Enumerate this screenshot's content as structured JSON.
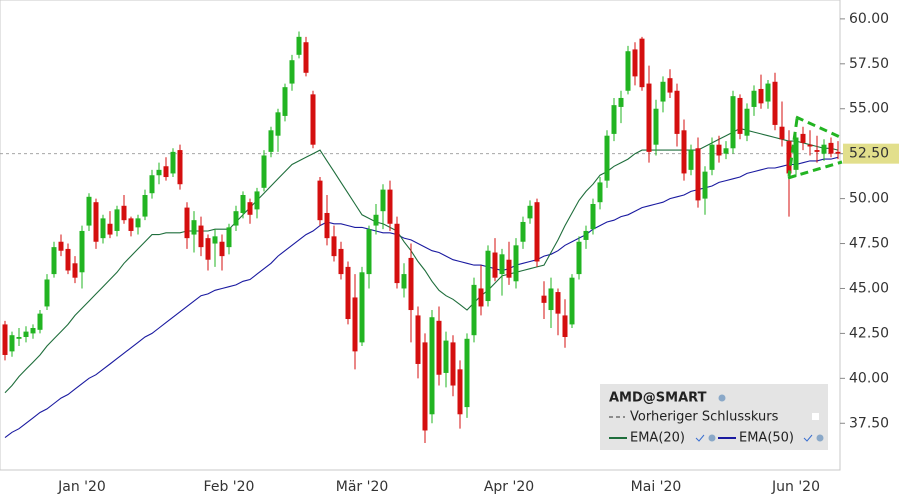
{
  "chart_data": {
    "type": "candlestick",
    "categories": [
      null,
      null,
      null,
      null,
      null,
      null,
      null,
      null,
      null,
      null,
      null,
      "Jan '20",
      null,
      null,
      null,
      null,
      null,
      null,
      null,
      null,
      null,
      null,
      null,
      null,
      null,
      null,
      null,
      null,
      null,
      null,
      null,
      null,
      "Feb '20",
      null,
      null,
      null,
      null,
      null,
      null,
      null,
      null,
      null,
      null,
      null,
      null,
      null,
      null,
      null,
      null,
      null,
      null,
      "Mär '20",
      null,
      null,
      null,
      null,
      null,
      null,
      null,
      null,
      null,
      null,
      null,
      null,
      null,
      null,
      null,
      null,
      null,
      null,
      null,
      null,
      "Apr '20",
      null,
      null,
      null,
      null,
      null,
      null,
      null,
      null,
      null,
      null,
      null,
      null,
      null,
      null,
      null,
      null,
      null,
      null,
      null,
      null,
      "Mai '20",
      null,
      null,
      null,
      null,
      null,
      null,
      null,
      null,
      null,
      null,
      null,
      null,
      null,
      null,
      null,
      null,
      null,
      null,
      null,
      "Jun '20",
      null,
      null,
      null,
      null,
      null,
      null
    ],
    "series": [
      {
        "name": "AMD@SMART",
        "up_color": "#22b422",
        "down_color": "#d40f0f",
        "open": [
          43.0,
          41.5,
          42.2,
          42.3,
          42.5,
          42.7,
          44.0,
          45.8,
          47.6,
          47.2,
          46.4,
          45.9,
          48.5,
          49.8,
          47.8,
          48.6,
          48.2,
          49.6,
          48.9,
          48.4,
          49.0,
          50.3,
          51.3,
          51.8,
          51.4,
          52.7,
          49.5,
          48.0,
          48.5,
          47.8,
          47.5,
          47.6,
          47.3,
          48.5,
          49.2,
          49.8,
          49.4,
          50.6,
          52.6,
          53.5,
          54.6,
          56.4,
          58.0,
          58.7,
          55.8,
          51.0,
          49.2,
          47.9,
          47.2,
          46.2,
          44.5,
          42.0,
          45.8,
          48.5,
          49.3,
          50.5,
          48.6,
          45.0,
          46.7,
          43.5,
          42.0,
          38.0,
          43.2,
          40.3,
          42.0,
          40.5,
          38.4,
          42.4,
          45.0,
          44.3,
          47.0,
          45.8,
          46.6,
          45.4,
          47.6,
          48.9,
          49.8,
          44.6,
          43.8,
          44.8,
          43.5,
          43.0,
          45.8,
          47.7,
          48.3,
          49.8,
          51.0,
          53.6,
          55.1,
          56.0,
          58.3,
          58.9,
          56.4,
          53.0,
          55.4,
          56.7,
          56.0,
          53.8,
          51.6,
          52.8,
          50.0,
          51.6,
          53.0,
          52.5,
          52.8,
          55.6,
          53.5,
          55.1,
          56.1,
          55.4,
          56.5,
          54.0,
          53.2,
          51.6,
          53.6,
          53.0,
          52.7,
          52.5,
          53.1,
          52.6
        ],
        "high": [
          43.2,
          42.6,
          42.8,
          42.9,
          43.0,
          43.8,
          45.8,
          47.6,
          48.0,
          47.5,
          46.8,
          48.5,
          50.3,
          50.0,
          49.1,
          49.3,
          49.6,
          50.2,
          49.0,
          49.1,
          50.5,
          51.6,
          52.0,
          52.3,
          52.8,
          53.0,
          49.8,
          49.3,
          49.0,
          48.0,
          48.3,
          48.0,
          48.6,
          49.6,
          50.4,
          50.0,
          50.6,
          52.7,
          54.0,
          55.0,
          56.4,
          58.0,
          59.3,
          59.0,
          56.0,
          51.2,
          50.2,
          48.5,
          47.6,
          46.5,
          45.8,
          46.2,
          48.5,
          49.7,
          50.8,
          51.0,
          49.0,
          46.4,
          47.5,
          44.0,
          42.5,
          43.8,
          44.0,
          42.6,
          42.4,
          41.0,
          42.5,
          45.6,
          46.3,
          47.4,
          47.8,
          47.2,
          47.6,
          47.8,
          49.0,
          49.9,
          50.0,
          45.4,
          45.6,
          45.0,
          44.4,
          45.8,
          47.9,
          48.5,
          50.0,
          51.2,
          53.8,
          55.6,
          56.0,
          58.5,
          58.7,
          59.0,
          57.4,
          55.5,
          56.8,
          57.2,
          56.4,
          54.4,
          53.0,
          53.4,
          51.8,
          53.4,
          53.5,
          53.2,
          56.0,
          55.8,
          55.3,
          56.3,
          56.9,
          56.6,
          57.0,
          55.4,
          53.8,
          53.6,
          54.0,
          53.8,
          53.5,
          53.3,
          53.4,
          53.2
        ],
        "low": [
          41.0,
          41.2,
          41.8,
          42.0,
          42.2,
          42.5,
          43.8,
          45.6,
          46.8,
          45.8,
          45.3,
          45.0,
          48.2,
          47.2,
          47.5,
          47.8,
          47.9,
          48.6,
          47.9,
          48.0,
          48.8,
          50.0,
          50.8,
          51.0,
          51.2,
          50.5,
          47.2,
          47.0,
          46.8,
          46.0,
          46.2,
          46.0,
          46.9,
          48.2,
          48.9,
          48.6,
          48.9,
          50.4,
          52.3,
          52.6,
          54.3,
          56.0,
          57.8,
          56.8,
          52.8,
          48.5,
          47.4,
          46.5,
          45.5,
          43.0,
          40.5,
          41.8,
          45.0,
          48.0,
          48.3,
          48.2,
          45.0,
          44.5,
          42.0,
          40.0,
          36.4,
          37.5,
          39.6,
          39.5,
          39.0,
          37.2,
          37.8,
          42.0,
          43.5,
          44.0,
          45.4,
          44.6,
          45.2,
          45.0,
          47.2,
          48.6,
          46.2,
          43.3,
          42.8,
          42.4,
          41.7,
          42.8,
          45.5,
          47.2,
          48.0,
          49.4,
          50.6,
          53.2,
          54.2,
          55.8,
          56.3,
          56.0,
          52.0,
          52.4,
          54.8,
          55.6,
          52.9,
          51.0,
          51.3,
          49.5,
          49.1,
          51.3,
          52.0,
          52.2,
          52.5,
          53.3,
          53.2,
          54.6,
          55.0,
          55.0,
          53.8,
          52.9,
          49.0,
          51.2,
          52.7,
          52.4,
          52.0,
          52.1,
          52.3,
          52.2
        ],
        "close": [
          41.3,
          42.4,
          42.3,
          42.6,
          42.8,
          43.6,
          45.5,
          47.3,
          47.1,
          46.0,
          45.6,
          48.2,
          50.1,
          47.6,
          48.9,
          48.0,
          49.4,
          48.8,
          48.2,
          48.9,
          50.2,
          51.3,
          51.6,
          51.2,
          52.6,
          50.8,
          47.8,
          48.8,
          47.3,
          46.6,
          47.9,
          46.8,
          48.4,
          49.3,
          50.2,
          49.1,
          50.4,
          52.4,
          53.8,
          54.8,
          56.2,
          57.7,
          59.0,
          57.0,
          53.0,
          48.8,
          47.8,
          46.8,
          45.8,
          43.3,
          41.5,
          45.9,
          48.3,
          49.1,
          50.5,
          48.6,
          45.3,
          45.8,
          43.8,
          40.8,
          37.1,
          43.4,
          40.2,
          42.1,
          39.6,
          38.0,
          42.2,
          45.2,
          44.0,
          47.1,
          45.6,
          46.9,
          45.6,
          47.4,
          48.7,
          49.6,
          46.5,
          44.2,
          45.0,
          43.6,
          42.3,
          45.6,
          47.6,
          48.2,
          49.7,
          50.9,
          53.5,
          55.2,
          55.6,
          58.2,
          56.8,
          56.2,
          52.6,
          55.0,
          56.5,
          55.9,
          53.6,
          51.4,
          52.7,
          49.9,
          51.5,
          53.0,
          52.4,
          52.8,
          55.7,
          53.6,
          55.0,
          56.0,
          55.3,
          56.4,
          54.1,
          53.3,
          51.4,
          53.4,
          53.1,
          52.9,
          52.6,
          53.0,
          52.5,
          52.5
        ]
      },
      {
        "name": "EMA(20)",
        "color": "#1f6e3c",
        "values": [
          39.2,
          39.6,
          40.1,
          40.5,
          40.9,
          41.3,
          41.8,
          42.2,
          42.6,
          43.0,
          43.5,
          43.9,
          44.3,
          44.7,
          45.1,
          45.5,
          45.9,
          46.4,
          46.8,
          47.2,
          47.6,
          48.0,
          48.0,
          48.1,
          48.1,
          48.1,
          48.2,
          48.2,
          48.2,
          48.2,
          48.3,
          48.3,
          48.3,
          48.7,
          49.1,
          49.5,
          49.9,
          50.3,
          50.7,
          51.1,
          51.5,
          51.9,
          52.1,
          52.3,
          52.5,
          52.7,
          52.1,
          51.5,
          50.9,
          50.3,
          49.7,
          49.1,
          48.9,
          48.7,
          48.6,
          48.4,
          48.2,
          47.6,
          47.1,
          46.5,
          46.0,
          45.4,
          44.9,
          44.6,
          44.4,
          44.1,
          43.8,
          44.2,
          44.6,
          44.9,
          45.3,
          45.7,
          45.8,
          45.9,
          46.0,
          46.1,
          46.2,
          46.3,
          47.0,
          47.7,
          48.5,
          49.2,
          49.9,
          50.4,
          50.8,
          51.3,
          51.5,
          51.8,
          52.0,
          52.2,
          52.5,
          52.7,
          52.7,
          52.7,
          52.7,
          52.7,
          52.7,
          52.7,
          52.7,
          52.7,
          52.9,
          53.1,
          53.3,
          53.5,
          53.7,
          53.9,
          53.8,
          53.7,
          53.6,
          53.5,
          53.4,
          53.3,
          53.2,
          53.2,
          53.1,
          53.0,
          52.9,
          52.8,
          52.8,
          52.7
        ]
      },
      {
        "name": "EMA(50)",
        "color": "#1a1aa0",
        "values": [
          36.7,
          37.0,
          37.2,
          37.5,
          37.8,
          38.1,
          38.3,
          38.6,
          38.9,
          39.1,
          39.4,
          39.7,
          40.0,
          40.2,
          40.5,
          40.8,
          41.1,
          41.4,
          41.7,
          42.0,
          42.3,
          42.5,
          42.8,
          43.1,
          43.4,
          43.7,
          44.0,
          44.3,
          44.6,
          44.7,
          44.9,
          45.0,
          45.1,
          45.2,
          45.4,
          45.5,
          45.8,
          46.1,
          46.4,
          46.8,
          47.1,
          47.4,
          47.7,
          48.0,
          48.2,
          48.5,
          48.7,
          48.6,
          48.6,
          48.5,
          48.4,
          48.4,
          48.3,
          48.2,
          48.1,
          48.1,
          48.0,
          47.8,
          47.7,
          47.5,
          47.3,
          47.1,
          47.0,
          46.8,
          46.6,
          46.5,
          46.4,
          46.3,
          46.3,
          46.2,
          46.1,
          46.0,
          46.1,
          46.3,
          46.4,
          46.5,
          46.6,
          46.8,
          46.9,
          47.1,
          47.4,
          47.6,
          47.8,
          48.0,
          48.3,
          48.5,
          48.7,
          48.8,
          49.0,
          49.1,
          49.3,
          49.5,
          49.6,
          49.7,
          49.8,
          50.0,
          50.1,
          50.2,
          50.4,
          50.5,
          50.6,
          50.7,
          50.9,
          51.0,
          51.1,
          51.2,
          51.4,
          51.5,
          51.6,
          51.7,
          51.7,
          51.8,
          51.9,
          51.9,
          52.0,
          52.1,
          52.1,
          52.2,
          52.2,
          52.3
        ]
      }
    ],
    "reference_line": {
      "name": "Vorheriger Schlusskurs",
      "value": 52.5,
      "label": "52.50",
      "color": "#e2df8c"
    },
    "ylim": [
      34.9,
      61.05
    ],
    "yticks": [
      {
        "value": 37.5,
        "label": "37.50"
      },
      {
        "value": 40,
        "label": "40.00"
      },
      {
        "value": 42.5,
        "label": "42.50"
      },
      {
        "value": 45,
        "label": "45.00"
      },
      {
        "value": 47.5,
        "label": "47.50"
      },
      {
        "value": 50,
        "label": "50.00"
      },
      {
        "value": 52.5,
        "label": "52.50"
      },
      {
        "value": 55,
        "label": "55.00"
      },
      {
        "value": 57.5,
        "label": "57.50"
      },
      {
        "value": 60,
        "label": "60.00"
      }
    ]
  }
}
